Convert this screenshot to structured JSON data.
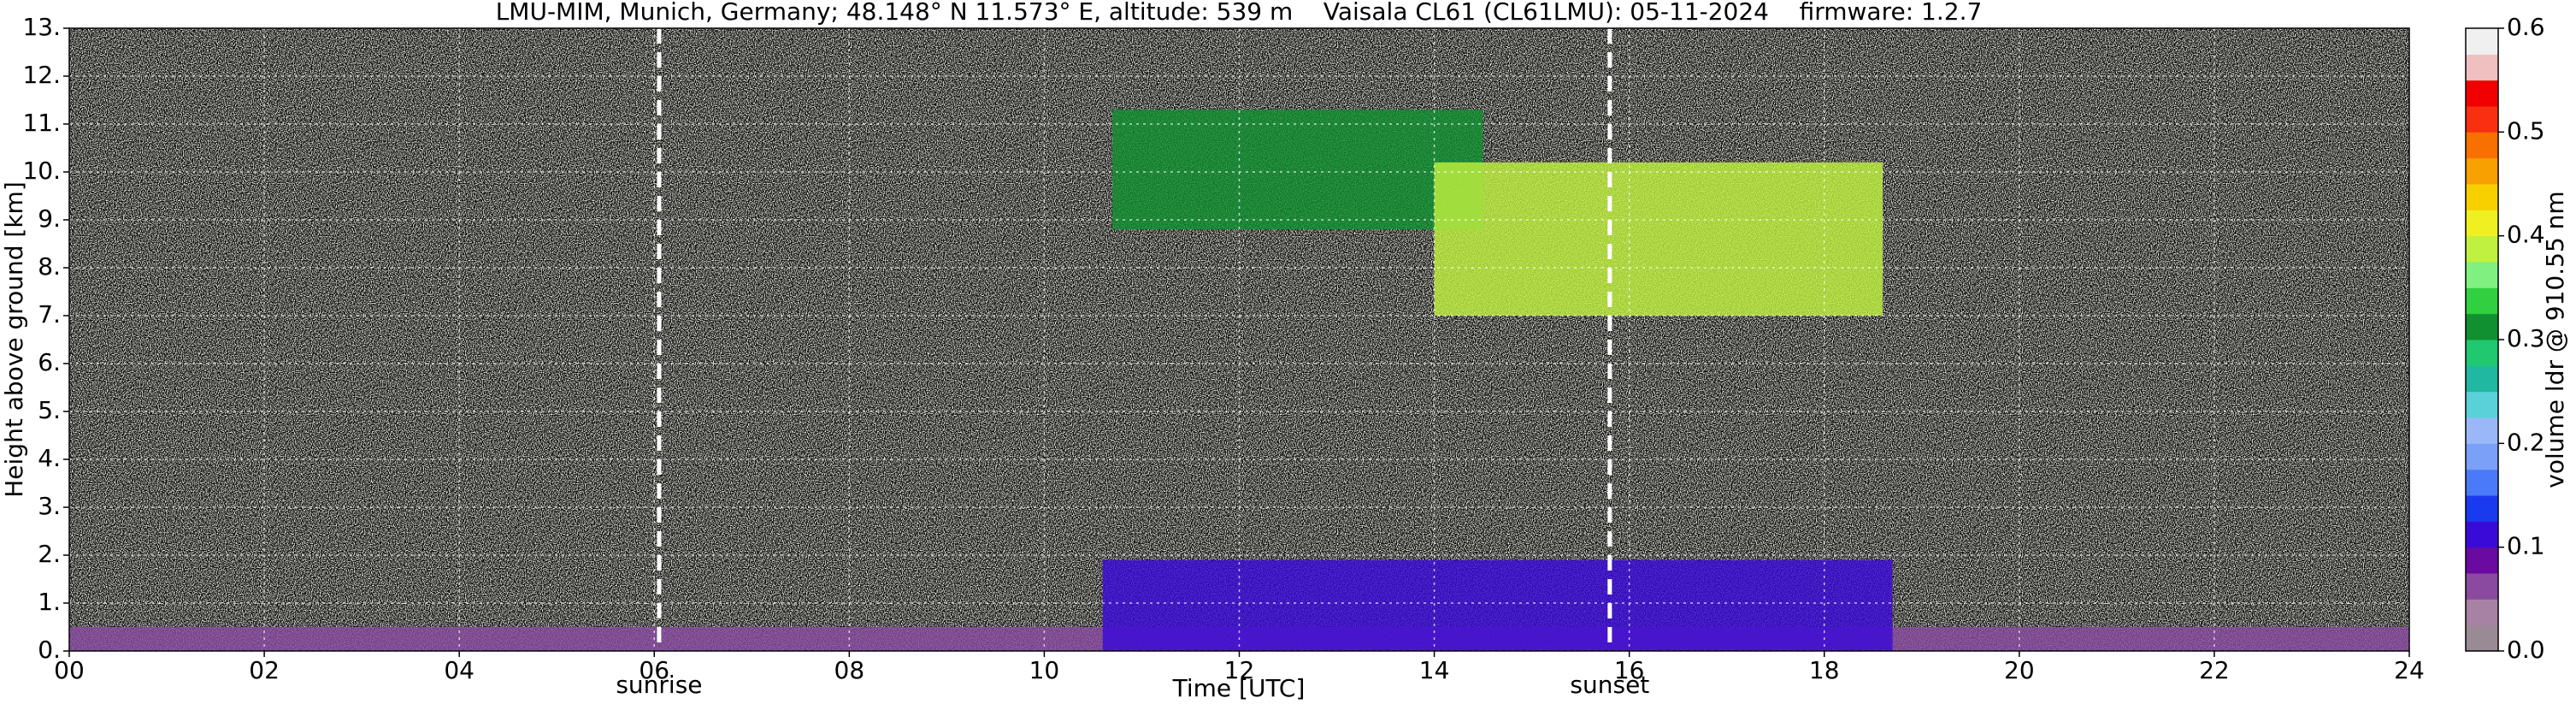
{
  "chart_data": {
    "type": "heatmap",
    "title": "LMU-MIM, Munich, Germany; 48.148° N 11.573° E, altitude: 539 m    Vaisala CL61 (CL61LMU): 05-11-2024    firmware: 1.2.7",
    "xlabel": "Time [UTC]",
    "ylabel": "Height above ground [km]",
    "xlim": [
      0,
      24
    ],
    "ylim": [
      0,
      13
    ],
    "xticks": [
      {
        "value": 0,
        "label": "00"
      },
      {
        "value": 2,
        "label": "02"
      },
      {
        "value": 4,
        "label": "04"
      },
      {
        "value": 6,
        "label": "06"
      },
      {
        "value": 8,
        "label": "08"
      },
      {
        "value": 10,
        "label": "10"
      },
      {
        "value": 12,
        "label": "12"
      },
      {
        "value": 14,
        "label": "14"
      },
      {
        "value": 16,
        "label": "16"
      },
      {
        "value": 18,
        "label": "18"
      },
      {
        "value": 20,
        "label": "20"
      },
      {
        "value": 22,
        "label": "22"
      },
      {
        "value": 24,
        "label": "24"
      }
    ],
    "yticks": [
      {
        "value": 0,
        "label": "0."
      },
      {
        "value": 1,
        "label": "1."
      },
      {
        "value": 2,
        "label": "2."
      },
      {
        "value": 3,
        "label": "3."
      },
      {
        "value": 4,
        "label": "4."
      },
      {
        "value": 5,
        "label": "5."
      },
      {
        "value": 6,
        "label": "6."
      },
      {
        "value": 7,
        "label": "7."
      },
      {
        "value": 8,
        "label": "8."
      },
      {
        "value": 9,
        "label": "9."
      },
      {
        "value": 10,
        "label": "10."
      },
      {
        "value": 11,
        "label": "11."
      },
      {
        "value": 12,
        "label": "12."
      },
      {
        "value": 13,
        "label": "13."
      }
    ],
    "grid": true,
    "annotations": [
      {
        "text": "sunrise",
        "x": 6.05
      },
      {
        "text": "sunset",
        "x": 15.8
      }
    ],
    "regions": [
      {
        "x": [
          0,
          24
        ],
        "y": [
          0,
          0.5
        ],
        "value": 0.05
      },
      {
        "x": [
          10.6,
          18.7
        ],
        "y": [
          0,
          1.9
        ],
        "value": 0.12
      },
      {
        "x": [
          10.7,
          14.5
        ],
        "y": [
          8.8,
          11.3
        ],
        "value": 0.3
      },
      {
        "x": [
          14,
          18.6
        ],
        "y": [
          7,
          10.2
        ],
        "value": 0.38
      }
    ],
    "colorbar": {
      "label": "volume ldr @ 910.55 nm",
      "lim": [
        0,
        0.6
      ],
      "ticks": [
        {
          "value": 0,
          "label": "0.0"
        },
        0.1,
        0.2,
        0.3,
        0.4,
        0.5,
        0.6
      ],
      "colors": [
        "#9a8a96",
        "#a882a4",
        "#8a4aa0",
        "#6a0aa0",
        "#3a0ad8",
        "#1a3af0",
        "#4a7af8",
        "#7aa0f8",
        "#9ab8f8",
        "#5ad0d8",
        "#20b8a0",
        "#20c870",
        "#109030",
        "#30d040",
        "#80f080",
        "#c0f040",
        "#f0f020",
        "#f8d000",
        "#f8a000",
        "#f87000",
        "#f83010",
        "#f00000",
        "#f0c0c0",
        "#f0f0f0"
      ]
    }
  }
}
